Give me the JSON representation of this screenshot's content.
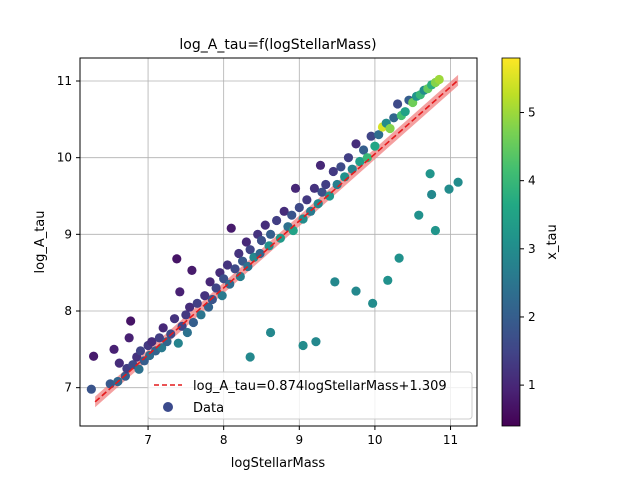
{
  "chart_data": {
    "type": "scatter",
    "title": "log_A_tau=f(logStellarMass)",
    "xlabel": "logStellarMass",
    "ylabel": "log_A_tau",
    "xlim": [
      6.1,
      11.35
    ],
    "ylim": [
      6.5,
      11.3
    ],
    "xticks": [
      7,
      8,
      9,
      10,
      11
    ],
    "yticks": [
      7,
      8,
      9,
      10,
      11
    ],
    "grid": true,
    "legend_position": "lower-right",
    "legend": {
      "fit_label": "log_A_tau=0.874logStellarMass+1.309",
      "data_label": "Data"
    },
    "fit": {
      "slope": 0.874,
      "intercept": 1.309,
      "x_range": [
        6.3,
        11.1
      ],
      "line_color": "#e41a1c",
      "band_color": "#f08080"
    },
    "colorbar": {
      "label": "x_tau",
      "min": 0.4,
      "max": 5.8,
      "ticks": [
        1,
        2,
        3,
        4,
        5
      ],
      "colormap": "viridis"
    },
    "series": [
      {
        "points": [
          [
            6.25,
            6.98,
            1.8
          ],
          [
            6.28,
            7.41,
            0.8
          ],
          [
            6.5,
            7.05,
            1.9
          ],
          [
            6.55,
            7.5,
            0.9
          ],
          [
            6.6,
            7.08,
            2.2
          ],
          [
            6.62,
            7.32,
            1.1
          ],
          [
            6.7,
            7.15,
            2.0
          ],
          [
            6.72,
            7.25,
            1.4
          ],
          [
            6.75,
            7.65,
            0.9
          ],
          [
            6.77,
            7.87,
            0.7
          ],
          [
            6.8,
            7.3,
            1.6
          ],
          [
            6.85,
            7.4,
            1.2
          ],
          [
            6.88,
            7.24,
            2.4
          ],
          [
            6.9,
            7.48,
            1.5
          ],
          [
            6.95,
            7.35,
            2.0
          ],
          [
            7.0,
            7.55,
            1.3
          ],
          [
            7.02,
            7.42,
            2.3
          ],
          [
            7.05,
            7.6,
            1.1
          ],
          [
            7.1,
            7.48,
            2.1
          ],
          [
            7.15,
            7.65,
            1.4
          ],
          [
            7.18,
            7.52,
            2.6
          ],
          [
            7.2,
            7.78,
            1.0
          ],
          [
            7.25,
            7.6,
            2.2
          ],
          [
            7.3,
            7.7,
            1.6
          ],
          [
            7.35,
            7.9,
            1.2
          ],
          [
            7.38,
            8.68,
            0.7
          ],
          [
            7.42,
            8.25,
            0.9
          ],
          [
            7.4,
            7.58,
            2.8
          ],
          [
            7.45,
            7.8,
            1.5
          ],
          [
            7.5,
            7.95,
            1.3
          ],
          [
            7.52,
            7.72,
            2.4
          ],
          [
            7.55,
            8.05,
            1.1
          ],
          [
            7.58,
            8.53,
            0.8
          ],
          [
            7.6,
            7.85,
            2.0
          ],
          [
            7.65,
            8.1,
            1.4
          ],
          [
            7.7,
            7.95,
            2.5
          ],
          [
            7.75,
            8.2,
            1.2
          ],
          [
            7.8,
            8.05,
            2.1
          ],
          [
            7.82,
            8.38,
            1.0
          ],
          [
            7.85,
            8.15,
            1.8
          ],
          [
            7.9,
            8.3,
            1.5
          ],
          [
            7.95,
            8.5,
            1.1
          ],
          [
            7.98,
            8.2,
            2.6
          ],
          [
            8.0,
            8.42,
            1.7
          ],
          [
            8.05,
            8.6,
            1.2
          ],
          [
            8.08,
            8.35,
            2.3
          ],
          [
            8.1,
            9.08,
            0.8
          ],
          [
            8.15,
            8.55,
            1.6
          ],
          [
            8.2,
            8.75,
            1.2
          ],
          [
            8.22,
            8.45,
            2.7
          ],
          [
            8.25,
            8.65,
            1.9
          ],
          [
            8.3,
            8.9,
            1.0
          ],
          [
            8.32,
            8.58,
            2.4
          ],
          [
            8.35,
            8.8,
            1.5
          ],
          [
            8.4,
            8.7,
            2.9
          ],
          [
            8.45,
            9.0,
            1.2
          ],
          [
            8.48,
            8.75,
            2.2
          ],
          [
            8.5,
            8.92,
            1.7
          ],
          [
            8.55,
            9.12,
            1.1
          ],
          [
            8.6,
            8.85,
            3.1
          ],
          [
            8.62,
            9.0,
            2.0
          ],
          [
            8.7,
            9.18,
            1.4
          ],
          [
            8.75,
            8.95,
            3.3
          ],
          [
            8.8,
            9.3,
            1.1
          ],
          [
            8.85,
            9.1,
            2.4
          ],
          [
            8.9,
            9.25,
            1.8
          ],
          [
            8.92,
            9.05,
            3.5
          ],
          [
            8.95,
            9.6,
            1.0
          ],
          [
            9.0,
            9.35,
            1.6
          ],
          [
            9.05,
            9.2,
            3.0
          ],
          [
            9.1,
            9.45,
            1.3
          ],
          [
            9.15,
            9.3,
            2.6
          ],
          [
            9.2,
            9.6,
            1.2
          ],
          [
            9.25,
            9.4,
            2.9
          ],
          [
            9.28,
            9.9,
            1.0
          ],
          [
            9.3,
            9.55,
            1.7
          ],
          [
            9.35,
            9.65,
            1.4
          ],
          [
            9.4,
            9.5,
            3.2
          ],
          [
            9.45,
            9.82,
            1.3
          ],
          [
            9.5,
            9.65,
            2.7
          ],
          [
            9.55,
            9.88,
            1.6
          ],
          [
            9.6,
            9.75,
            3.1
          ],
          [
            9.65,
            10.0,
            1.4
          ],
          [
            9.7,
            9.85,
            2.8
          ],
          [
            9.75,
            10.18,
            1.1
          ],
          [
            9.8,
            9.95,
            3.4
          ],
          [
            9.85,
            10.1,
            2.0
          ],
          [
            9.9,
            10.0,
            4.0
          ],
          [
            9.95,
            10.28,
            1.5
          ],
          [
            10.0,
            10.15,
            3.6
          ],
          [
            10.05,
            10.3,
            2.3
          ],
          [
            10.1,
            10.4,
            5.5
          ],
          [
            10.15,
            10.45,
            3.0
          ],
          [
            10.2,
            10.38,
            4.8
          ],
          [
            10.25,
            10.52,
            2.2
          ],
          [
            10.3,
            10.7,
            1.6
          ],
          [
            10.35,
            10.55,
            4.2
          ],
          [
            10.4,
            10.6,
            3.5
          ],
          [
            10.45,
            10.75,
            2.0
          ],
          [
            10.5,
            10.72,
            4.6
          ],
          [
            10.55,
            10.8,
            3.2
          ],
          [
            10.6,
            10.82,
            4.0
          ],
          [
            10.65,
            10.88,
            3.0
          ],
          [
            10.7,
            10.9,
            4.5
          ],
          [
            10.75,
            10.95,
            3.8
          ],
          [
            10.8,
            10.98,
            4.8
          ],
          [
            10.85,
            11.02,
            5.0
          ],
          [
            8.35,
            7.4,
            2.9
          ],
          [
            8.62,
            7.72,
            2.9
          ],
          [
            9.05,
            7.55,
            3.0
          ],
          [
            9.22,
            7.6,
            2.9
          ],
          [
            9.47,
            8.38,
            2.9
          ],
          [
            9.75,
            8.26,
            2.9
          ],
          [
            9.97,
            8.1,
            3.0
          ],
          [
            10.17,
            8.4,
            3.1
          ],
          [
            10.32,
            8.69,
            3.1
          ],
          [
            10.58,
            9.25,
            3.1
          ],
          [
            10.73,
            9.79,
            3.2
          ],
          [
            10.75,
            9.52,
            2.9
          ],
          [
            10.8,
            9.05,
            3.2
          ],
          [
            10.98,
            9.59,
            3.0
          ],
          [
            11.1,
            9.68,
            3.0
          ]
        ]
      }
    ]
  }
}
